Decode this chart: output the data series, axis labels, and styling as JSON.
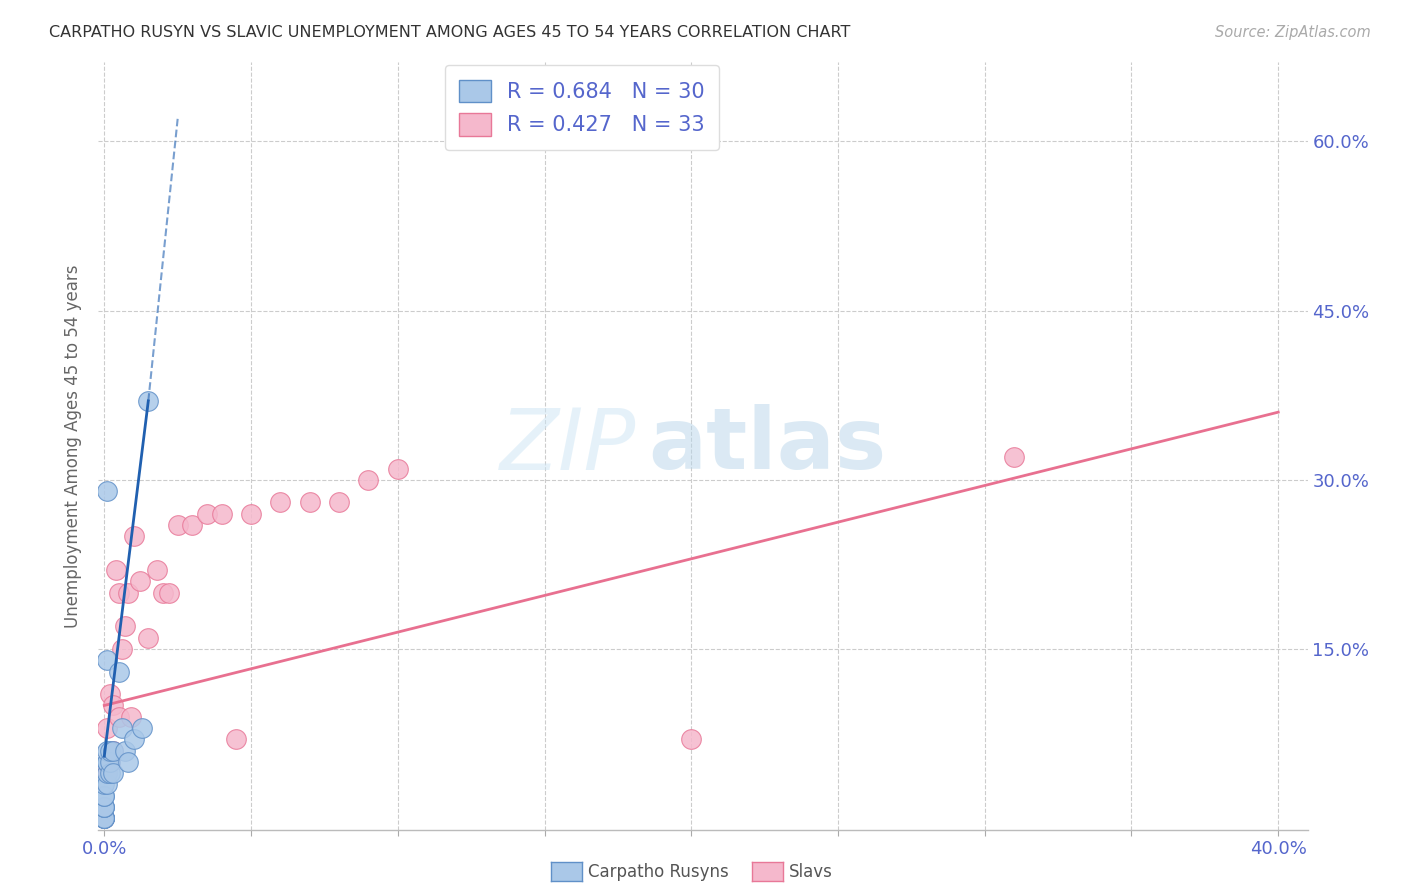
{
  "title": "CARPATHO RUSYN VS SLAVIC UNEMPLOYMENT AMONG AGES 45 TO 54 YEARS CORRELATION CHART",
  "source": "Source: ZipAtlas.com",
  "ylabel": "Unemployment Among Ages 45 to 54 years",
  "xlim": [
    -0.002,
    0.41
  ],
  "ylim": [
    -0.01,
    0.67
  ],
  "ytick_positions": [
    0.15,
    0.3,
    0.45,
    0.6
  ],
  "ytick_labels": [
    "15.0%",
    "30.0%",
    "45.0%",
    "60.0%"
  ],
  "xtick_positions": [
    0.0,
    0.05,
    0.1,
    0.15,
    0.2,
    0.25,
    0.3,
    0.35,
    0.4
  ],
  "xtick_labels": [
    "0.0%",
    "",
    "",
    "",
    "",
    "",
    "",
    "",
    "40.0%"
  ],
  "legend_text1": "R = 0.684   N = 30",
  "legend_text2": "R = 0.427   N = 33",
  "legend_label1": "Carpatho Rusyns",
  "legend_label2": "Slavs",
  "carpatho_color": "#aac8e8",
  "carpatho_edge": "#6090c8",
  "slav_color": "#f5b8cc",
  "slav_edge": "#e87898",
  "line_c_color": "#2060b0",
  "line_s_color": "#e87090",
  "bg_color": "#ffffff",
  "grid_color": "#cccccc",
  "title_color": "#333333",
  "source_color": "#aaaaaa",
  "tick_color": "#5566cc",
  "ylabel_color": "#666666",
  "carpatho_x": [
    0.0,
    0.0,
    0.0,
    0.0,
    0.0,
    0.0,
    0.0,
    0.0,
    0.0,
    0.0,
    0.0,
    0.001,
    0.001,
    0.001,
    0.001,
    0.001,
    0.001,
    0.001,
    0.002,
    0.002,
    0.002,
    0.003,
    0.003,
    0.005,
    0.006,
    0.007,
    0.008,
    0.01,
    0.013,
    0.015
  ],
  "carpatho_y": [
    0.0,
    0.0,
    0.0,
    0.0,
    0.0,
    0.01,
    0.01,
    0.01,
    0.02,
    0.02,
    0.03,
    0.03,
    0.04,
    0.05,
    0.05,
    0.06,
    0.14,
    0.29,
    0.04,
    0.05,
    0.06,
    0.04,
    0.06,
    0.13,
    0.08,
    0.06,
    0.05,
    0.07,
    0.08,
    0.37
  ],
  "slav_x": [
    0.0,
    0.001,
    0.001,
    0.002,
    0.002,
    0.003,
    0.003,
    0.004,
    0.005,
    0.005,
    0.006,
    0.007,
    0.008,
    0.009,
    0.01,
    0.012,
    0.015,
    0.018,
    0.02,
    0.022,
    0.025,
    0.03,
    0.035,
    0.04,
    0.045,
    0.05,
    0.06,
    0.07,
    0.08,
    0.09,
    0.1,
    0.2,
    0.31
  ],
  "slav_y": [
    0.0,
    0.04,
    0.08,
    0.05,
    0.11,
    0.06,
    0.1,
    0.22,
    0.09,
    0.2,
    0.15,
    0.17,
    0.2,
    0.09,
    0.25,
    0.21,
    0.16,
    0.22,
    0.2,
    0.2,
    0.26,
    0.26,
    0.27,
    0.27,
    0.07,
    0.27,
    0.28,
    0.28,
    0.28,
    0.3,
    0.31,
    0.07,
    0.32
  ],
  "line_c_x0": 0.0,
  "line_c_y0": 0.055,
  "line_c_x1": 0.015,
  "line_c_y1": 0.37,
  "line_c_xdash0": 0.015,
  "line_c_ydash0": 0.37,
  "line_c_xdash1": 0.025,
  "line_c_ydash1": 0.62,
  "line_s_x0": 0.0,
  "line_s_y0": 0.1,
  "line_s_x1": 0.4,
  "line_s_y1": 0.36
}
